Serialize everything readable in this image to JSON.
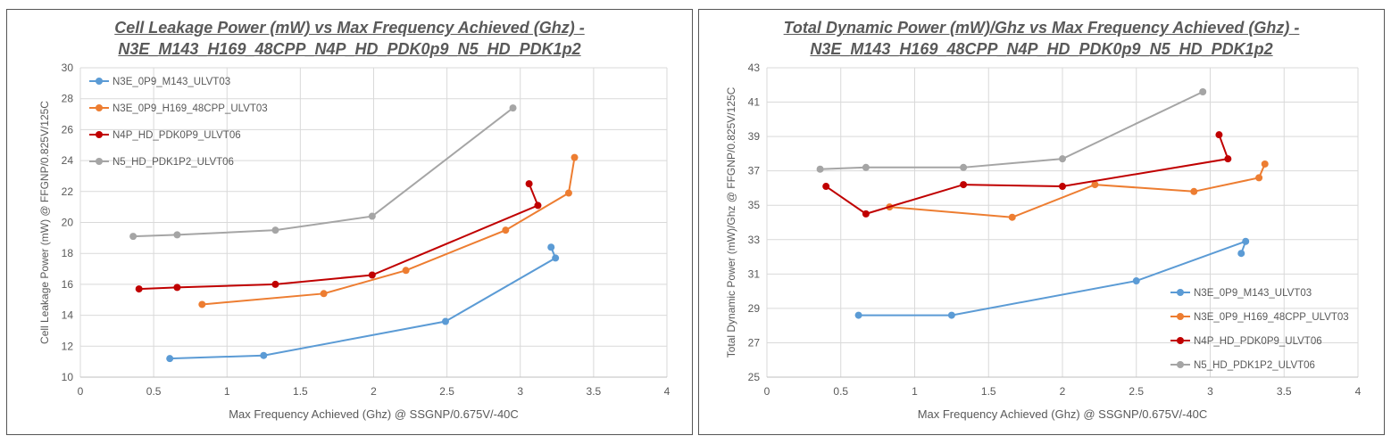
{
  "chart_data": [
    {
      "type": "line",
      "title_line1": "Cell Leakage Power (mW) vs Max Frequency Achieved (Ghz) -",
      "title_line2": "N3E_M143_H169_48CPP_N4P_HD_PDK0p9_N5_HD_PDK1p2",
      "xlabel": "Max Frequency Achieved (Ghz) @ SSGNP/0.675V/-40C",
      "ylabel": "Cell Leakage Power (mW) @ FFGNP/0.825V/125C",
      "xlim": [
        0,
        4
      ],
      "xticks": [
        0,
        0.5,
        1,
        1.5,
        2,
        2.5,
        3,
        3.5,
        4
      ],
      "ylim": [
        10,
        30
      ],
      "yticks": [
        10,
        12,
        14,
        16,
        18,
        20,
        22,
        24,
        26,
        28,
        30
      ],
      "grid": true,
      "legend": "top-left",
      "series": [
        {
          "name": "N3E_0P9_M143_ULVT03",
          "color": "#5B9BD5",
          "x": [
            0.61,
            1.25,
            2.49,
            3.24,
            3.21
          ],
          "y": [
            11.2,
            11.4,
            13.6,
            17.7,
            18.4
          ]
        },
        {
          "name": "N3E_0P9_H169_48CPP_ULVT03",
          "color": "#ED7D31",
          "x": [
            0.83,
            1.66,
            2.22,
            2.9,
            3.33,
            3.37
          ],
          "y": [
            14.7,
            15.4,
            16.9,
            19.5,
            21.9,
            24.2
          ]
        },
        {
          "name": "N4P_HD_PDK0P9_ULVT06",
          "color": "#C00000",
          "x": [
            0.4,
            0.66,
            1.33,
            1.99,
            3.12,
            3.06
          ],
          "y": [
            15.7,
            15.8,
            16.0,
            16.6,
            21.1,
            22.5
          ]
        },
        {
          "name": "N5_HD_PDK1P2_ULVT06",
          "color": "#A5A5A5",
          "x": [
            0.36,
            0.66,
            1.33,
            1.99,
            2.95
          ],
          "y": [
            19.1,
            19.2,
            19.5,
            20.4,
            27.4
          ]
        }
      ]
    },
    {
      "type": "line",
      "title_line1": "Total Dynamic Power (mW)/Ghz vs Max Frequency Achieved (Ghz) -",
      "title_line2": "N3E_M143_H169_48CPP_N4P_HD_PDK0p9_N5_HD_PDK1p2",
      "xlabel": "Max Frequency Achieved (Ghz) @ SSGNP/0.675V/-40C",
      "ylabel": "Total Dynamic Power (mW)/Ghz @ FFGNP/0.825V/125C",
      "xlim": [
        0,
        4
      ],
      "xticks": [
        0,
        0.5,
        1,
        1.5,
        2,
        2.5,
        3,
        3.5,
        4
      ],
      "ylim": [
        25,
        43
      ],
      "yticks": [
        25,
        27,
        29,
        31,
        33,
        35,
        37,
        39,
        41,
        43
      ],
      "grid": true,
      "legend": "bottom-right",
      "series": [
        {
          "name": "N3E_0P9_M143_ULVT03",
          "color": "#5B9BD5",
          "x": [
            0.62,
            1.25,
            2.5,
            3.24,
            3.21
          ],
          "y": [
            28.6,
            28.6,
            30.6,
            32.9,
            32.2
          ]
        },
        {
          "name": "N3E_0P9_H169_48CPP_ULVT03",
          "color": "#ED7D31",
          "x": [
            0.83,
            1.66,
            2.22,
            2.89,
            3.33,
            3.37
          ],
          "y": [
            34.9,
            34.3,
            36.2,
            35.8,
            36.6,
            37.4
          ]
        },
        {
          "name": "N4P_HD_PDK0P9_ULVT06",
          "color": "#C00000",
          "x": [
            0.4,
            0.67,
            1.33,
            2.0,
            3.12,
            3.06
          ],
          "y": [
            36.1,
            34.5,
            36.2,
            36.1,
            37.7,
            39.1
          ]
        },
        {
          "name": "N5_HD_PDK1P2_ULVT06",
          "color": "#A5A5A5",
          "x": [
            0.36,
            0.67,
            1.33,
            2.0,
            2.95
          ],
          "y": [
            37.1,
            37.2,
            37.2,
            37.7,
            41.6
          ]
        }
      ]
    }
  ]
}
